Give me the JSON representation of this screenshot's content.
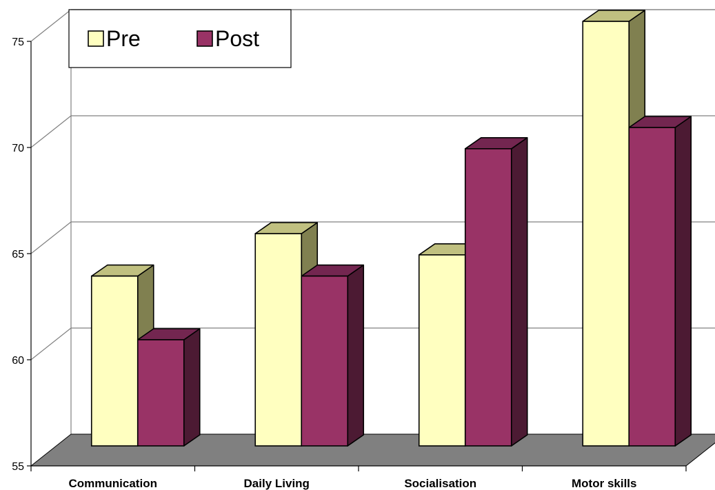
{
  "chart_data": {
    "type": "bar",
    "style": "3d-clustered-column",
    "title": "",
    "xlabel": "",
    "ylabel": "",
    "categories": [
      "Communication",
      "Daily Living",
      "Socialisation",
      "Motor skills"
    ],
    "series": [
      {
        "name": "Pre",
        "values": [
          63,
          65,
          64,
          75
        ],
        "color": "#FFFFC0",
        "side_color": "#808050",
        "top_color": "#C0C080"
      },
      {
        "name": "Post",
        "values": [
          60,
          63,
          69,
          70
        ],
        "color": "#993366",
        "side_color": "#4C1A33",
        "top_color": "#732650"
      }
    ],
    "ylim": [
      55,
      75
    ],
    "yticks": [
      "55",
      "60",
      "65",
      "70",
      "75"
    ],
    "grid": true,
    "legend": "top-left",
    "colors": {
      "floor": "#808080",
      "gridline": "#808080",
      "axis": "#000000"
    }
  }
}
